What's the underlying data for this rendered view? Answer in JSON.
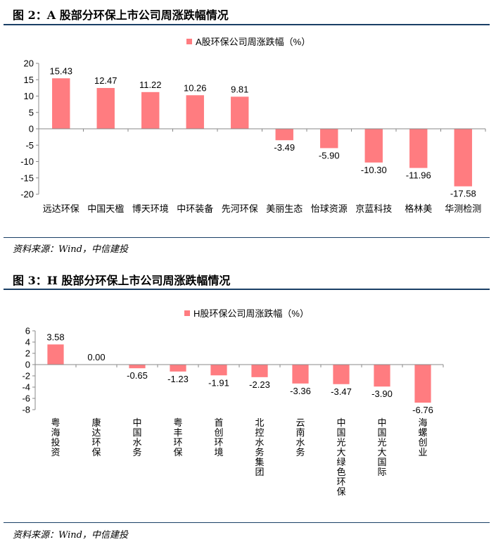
{
  "chart_data": [
    {
      "type": "bar",
      "title": "图 2：A 股部分环保上市公司周涨跌幅情况",
      "legend": "A股环保公司周涨跌幅（%）",
      "legend_position": "top",
      "source": "资料来源：Wind，中信建投",
      "xlabel": "",
      "ylabel": "",
      "ylim": [
        -20,
        20
      ],
      "ytick_step": 5,
      "yticks": [
        "20",
        "15",
        "10",
        "5",
        "0",
        "-5",
        "-10",
        "-15",
        "-20"
      ],
      "categories": [
        "远达环保",
        "中国天楹",
        "博天环境",
        "中环装备",
        "先河环保",
        "美丽生态",
        "怡球资源",
        "京蓝科技",
        "格林美",
        "华测检测"
      ],
      "values": [
        15.43,
        12.47,
        11.22,
        10.26,
        9.81,
        -3.49,
        -5.9,
        -10.3,
        -11.96,
        -17.58
      ],
      "value_labels": [
        "15.43",
        "12.47",
        "11.22",
        "10.26",
        "9.81",
        "-3.49",
        "-5.90",
        "-10.30",
        "-11.96",
        "-17.58"
      ],
      "bar_color": "#ff7c80",
      "grid": false
    },
    {
      "type": "bar",
      "title": "图 3：H 股部分环保上市公司周涨跌幅情况",
      "legend": "H股环保公司周涨跌幅（%）",
      "legend_position": "top",
      "source": "资料来源：Wind，中信建投",
      "xlabel": "",
      "ylabel": "",
      "ylim": [
        -8,
        6
      ],
      "ytick_step": 2,
      "yticks": [
        "6",
        "4",
        "2",
        "0",
        "-2",
        "-4",
        "-6",
        "-8"
      ],
      "categories": [
        "粤海投资",
        "康达环保",
        "中国水务",
        "粤丰环保",
        "首创环境",
        "北控水务集团",
        "云南水务",
        "中国光大绿色环保",
        "中国光大国际",
        "海螺创业"
      ],
      "values": [
        3.58,
        0.0,
        -0.65,
        -1.23,
        -1.91,
        -2.23,
        -3.36,
        -3.47,
        -3.9,
        -6.76
      ],
      "value_labels": [
        "3.58",
        "0.00",
        "-0.65",
        "-1.23",
        "-1.91",
        "-2.23",
        "-3.36",
        "-3.47",
        "-3.90",
        "-6.76"
      ],
      "bar_color": "#ff7c80",
      "grid": false
    }
  ],
  "colors": {
    "rule": "#1a3f66",
    "bar": "#ff7c80",
    "axis": "#888888"
  }
}
